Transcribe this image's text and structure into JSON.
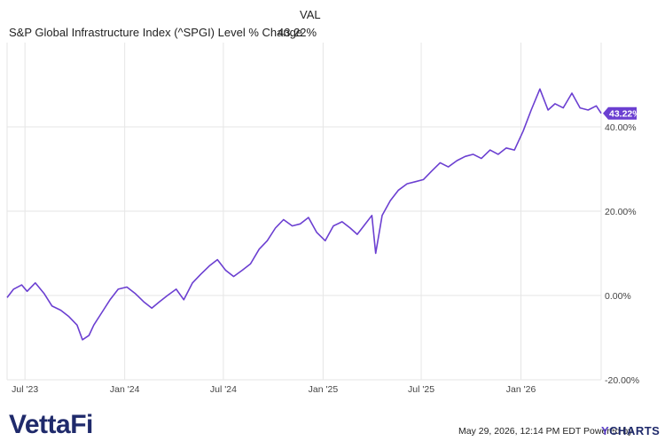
{
  "legend": {
    "header": "VAL",
    "series_name": "S&P Global Infrastructure Index (^SPGI) Level % Change",
    "series_value": "43.22%"
  },
  "footer": {
    "stamp": "May 29, 2026, 12:14 PM EDT Powered by",
    "ycharts_y": "Y",
    "ycharts_rest": "CHARTS",
    "logo": "VettaFi"
  },
  "colors": {
    "line": "#6b3fd1",
    "grid": "#e6e6e6",
    "label_bg": "#6b3fd1"
  },
  "chart_data": {
    "type": "line",
    "title": "",
    "xlabel": "",
    "ylabel": "",
    "ylim": [
      -20,
      60
    ],
    "y_ticks": [
      -20,
      0,
      20,
      40
    ],
    "y_tick_labels": [
      "-20.00%",
      "0.00%",
      "20.00%",
      "40.00%"
    ],
    "x_ticks": [
      "2023-07-01",
      "2024-01-01",
      "2024-07-01",
      "2025-01-01",
      "2025-07-01",
      "2026-01-01"
    ],
    "x_tick_labels": [
      "Jul '23",
      "Jan '24",
      "Jul '24",
      "Jan '25",
      "Jul '25",
      "Jan '26"
    ],
    "xlim": [
      "2023-05-29",
      "2026-05-29"
    ],
    "end_label": "43.22%",
    "grid": true,
    "series": [
      {
        "x": [
          "2023-05-29",
          "2023-06-10",
          "2023-06-25",
          "2023-07-05",
          "2023-07-20",
          "2023-08-05",
          "2023-08-20",
          "2023-09-05",
          "2023-09-20",
          "2023-10-05",
          "2023-10-15",
          "2023-10-27",
          "2023-11-05",
          "2023-11-20",
          "2023-12-05",
          "2023-12-20",
          "2024-01-05",
          "2024-01-20",
          "2024-02-05",
          "2024-02-20",
          "2024-03-05",
          "2024-03-20",
          "2024-04-05",
          "2024-04-19",
          "2024-05-05",
          "2024-05-20",
          "2024-06-05",
          "2024-06-20",
          "2024-07-05",
          "2024-07-20",
          "2024-08-05",
          "2024-08-20",
          "2024-09-05",
          "2024-09-20",
          "2024-10-05",
          "2024-10-20",
          "2024-11-05",
          "2024-11-20",
          "2024-12-05",
          "2024-12-20",
          "2025-01-05",
          "2025-01-20",
          "2025-02-05",
          "2025-02-20",
          "2025-03-05",
          "2025-03-20",
          "2025-04-01",
          "2025-04-08",
          "2025-04-20",
          "2025-05-05",
          "2025-05-20",
          "2025-06-05",
          "2025-06-20",
          "2025-07-05",
          "2025-07-20",
          "2025-08-05",
          "2025-08-20",
          "2025-09-05",
          "2025-09-20",
          "2025-10-05",
          "2025-10-20",
          "2025-11-05",
          "2025-11-20",
          "2025-12-05",
          "2025-12-20",
          "2026-01-05",
          "2026-01-20",
          "2026-02-05",
          "2026-02-20",
          "2026-03-05",
          "2026-03-20",
          "2026-04-05",
          "2026-04-20",
          "2026-05-05",
          "2026-05-20",
          "2026-05-29"
        ],
        "y": [
          -0.5,
          1.5,
          2.5,
          1.0,
          3.0,
          0.5,
          -2.5,
          -3.5,
          -5.0,
          -7.0,
          -10.5,
          -9.5,
          -7.0,
          -4.0,
          -1.0,
          1.5,
          2.0,
          0.5,
          -1.5,
          -3.0,
          -1.5,
          0.0,
          1.5,
          -1.0,
          3.0,
          5.0,
          7.0,
          8.5,
          6.0,
          4.5,
          6.0,
          7.5,
          11.0,
          13.0,
          16.0,
          18.0,
          16.5,
          17.0,
          18.5,
          15.0,
          13.0,
          16.5,
          17.5,
          16.0,
          14.5,
          17.0,
          19.0,
          10.0,
          19.0,
          22.5,
          25.0,
          26.5,
          27.0,
          27.5,
          29.5,
          31.5,
          30.5,
          32.0,
          33.0,
          33.5,
          32.5,
          34.5,
          33.5,
          35.0,
          34.5,
          39.0,
          44.0,
          49.0,
          44.0,
          45.5,
          44.5,
          48.0,
          44.5,
          44.0,
          45.0,
          43.22
        ]
      }
    ]
  }
}
